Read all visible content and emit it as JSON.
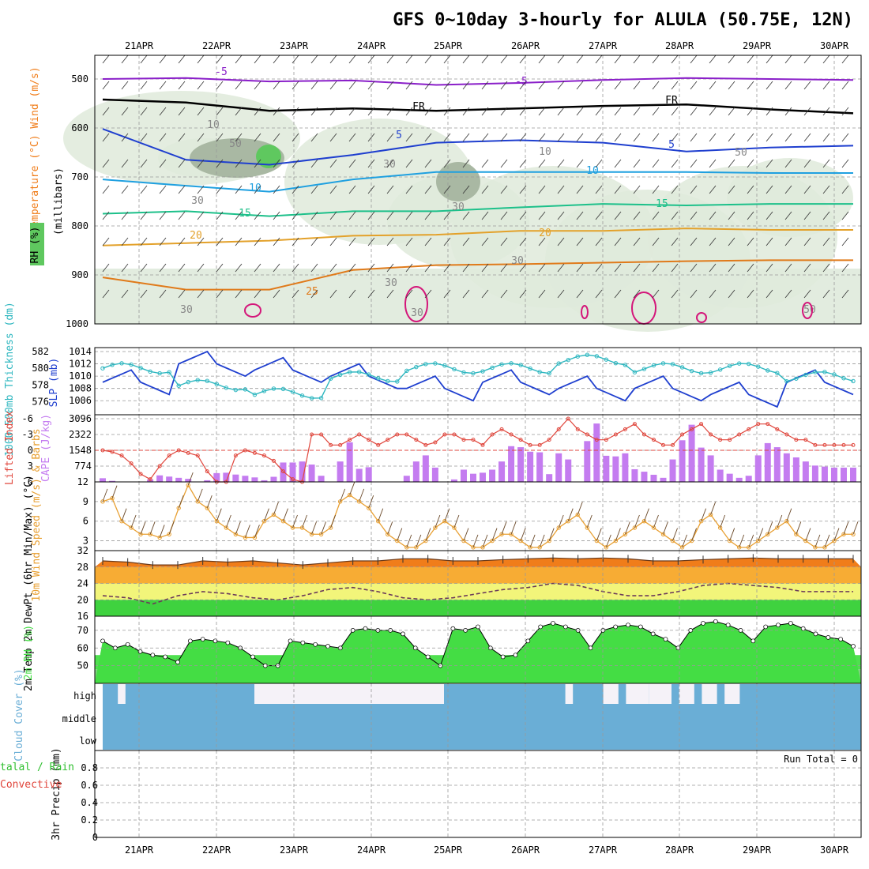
{
  "header": {
    "title": "GFS 0~10day 3-hourly for ALULA (50.75E, 12N)"
  },
  "colors": {
    "blue_line": "#1f3fcf",
    "cyan_line": "#2fb7c0",
    "cape": "#c47cf0",
    "lifted": "#e0463c",
    "wind_speed": "#e8a033",
    "rh_green": "#44dd44",
    "cloud_blue": "#6aaed6",
    "temp_orange": "#f07d1a"
  },
  "chart_data": [
    {
      "type": "line",
      "panel": "pressure-cross-section",
      "title": "",
      "ylabel": "Temperature (°C) Wind (m/s)",
      "ylabel2": "RH (%)",
      "ylabel3": "(millibars)",
      "yticks": [
        "500",
        "600",
        "700",
        "800",
        "900",
        "1000"
      ],
      "ylim": [
        450,
        1000
      ],
      "x": [
        "21APR",
        "22APR",
        "23APR",
        "24APR",
        "25APR",
        "26APR",
        "27APR",
        "28APR",
        "29APR",
        "30APR"
      ],
      "isotherm_labels": [
        "-5",
        "-5",
        "FR",
        "FR",
        "5",
        "5",
        "10",
        "10",
        "15",
        "15",
        "20",
        "20",
        "25"
      ],
      "rh_labels": [
        "30",
        "30",
        "30",
        "30",
        "30",
        "50",
        "50",
        "50",
        "10",
        "10",
        "30",
        "30"
      ],
      "series": [
        {
          "name": "-5",
          "values": [
            500,
            498,
            505,
            503,
            512,
            508,
            502,
            498,
            500,
            502
          ]
        },
        {
          "name": "FR",
          "values": [
            542,
            548,
            565,
            560,
            565,
            560,
            555,
            552,
            562,
            570
          ]
        },
        {
          "name": "5",
          "values": [
            602,
            665,
            675,
            655,
            630,
            625,
            630,
            648,
            640,
            636
          ]
        },
        {
          "name": "10",
          "values": [
            705,
            718,
            730,
            705,
            690,
            690,
            690,
            690,
            692,
            692
          ]
        },
        {
          "name": "15",
          "values": [
            775,
            770,
            780,
            770,
            770,
            762,
            755,
            758,
            755,
            755
          ]
        },
        {
          "name": "20",
          "values": [
            840,
            835,
            830,
            820,
            818,
            810,
            810,
            805,
            808,
            808
          ]
        },
        {
          "name": "25",
          "values": [
            905,
            930,
            930,
            890,
            880,
            878,
            875,
            872,
            870,
            870
          ]
        }
      ]
    },
    {
      "type": "line",
      "panel": "slp-thickness",
      "ylabel_left": "1000-500mb Thickness (dm)",
      "ylabel_right": "SLP (mb)",
      "yticks_left": [
        "576",
        "578",
        "580",
        "582"
      ],
      "yticks_right": [
        "1006",
        "1008",
        "1010",
        "1012",
        "1014"
      ],
      "ylim_left": [
        575.4,
        582
      ],
      "ylim_right": [
        1005,
        1014
      ],
      "series": [
        {
          "name": "SLP (mb)",
          "values": [
            1009,
            1012,
            1011,
            1010,
            1008,
            1009,
            1008,
            1008,
            1007,
            1009
          ]
        },
        {
          "name": "Thickness (dm)",
          "values": [
            580,
            578,
            577,
            579,
            580,
            580,
            581,
            580,
            580,
            579
          ]
        }
      ]
    },
    {
      "type": "bar",
      "panel": "cape-lifted-index",
      "ylabel_left": "Lifted Index",
      "ylabel_right": "CAPE (J/kg)",
      "yticks_left": [
        "-6",
        "-3",
        "0",
        "3",
        "6"
      ],
      "yticks_right": [
        "774",
        "1548",
        "2322",
        "3096"
      ],
      "ylim_cape": [
        0,
        3096
      ],
      "cape_values": [
        180,
        50,
        0,
        0,
        0,
        120,
        320,
        260,
        200,
        150,
        0,
        80,
        430,
        450,
        360,
        300,
        220,
        80,
        250,
        950,
        950,
        1000,
        850,
        300,
        0,
        1000,
        1940,
        640,
        720,
        0,
        0,
        0,
        300,
        1000,
        1300,
        700,
        0,
        120,
        600,
        400,
        450,
        600,
        1000,
        1750,
        1700,
        1480,
        1450,
        380,
        1400,
        1100,
        0,
        2000,
        2860,
        1280,
        1250,
        1400,
        620,
        500,
        350,
        200,
        1100,
        2040,
        2800,
        1680,
        1300,
        600,
        400,
        200,
        300,
        1300,
        1900,
        1700,
        1400,
        1200,
        1000,
        800,
        750,
        700,
        700,
        700
      ],
      "lifted_values": [
        0,
        0.3,
        1,
        2.5,
        4.5,
        5.5,
        3,
        1,
        0,
        0.5,
        1,
        4,
        6,
        6,
        1,
        0,
        0.5,
        1,
        2,
        4,
        5.5,
        6,
        -3,
        -3,
        -1,
        -1,
        -2,
        -3,
        -2,
        -1,
        -2,
        -3,
        -3,
        -2,
        -1,
        -1.5,
        -3,
        -3,
        -2,
        -2,
        -1,
        -3,
        -4,
        -3,
        -2,
        -1,
        -1,
        -2,
        -4,
        -6,
        -4,
        -3,
        -2,
        -2,
        -3,
        -4,
        -5,
        -3,
        -2,
        -1,
        -1,
        -3,
        -4,
        -5,
        -3,
        -2,
        -2,
        -3,
        -4,
        -5,
        -5,
        -4,
        -3,
        -2,
        -2,
        -1,
        -1,
        -1,
        -1,
        -1
      ]
    },
    {
      "type": "line",
      "panel": "wind-10m",
      "ylabel": "10m Wind Speed (m/s) & Barbs",
      "yticks": [
        "3",
        "6",
        "9",
        "12"
      ],
      "ylim": [
        1.5,
        12
      ],
      "values": [
        9,
        9.5,
        6,
        5,
        4,
        4,
        3.5,
        4,
        8,
        11.5,
        9,
        8,
        6,
        5,
        4,
        3.5,
        3.5,
        6,
        7,
        6,
        5,
        5,
        4,
        4,
        5,
        9,
        10,
        9,
        8,
        6,
        4,
        3,
        2,
        2,
        3,
        5,
        6,
        5,
        3,
        2,
        2,
        3,
        4,
        4,
        3,
        2,
        2,
        3,
        5,
        6,
        7,
        5,
        3,
        2,
        3,
        4,
        5,
        6,
        5,
        4,
        3,
        2,
        3,
        6,
        7,
        5,
        3,
        2,
        2,
        3,
        4,
        5,
        6,
        4,
        3,
        2,
        2,
        3,
        4,
        4
      ]
    },
    {
      "type": "area",
      "panel": "temp-dewpoint",
      "ylabel": "2m Temp 2m DewPt (6hr Min/Max) (°C)",
      "yticks": [
        "16",
        "20",
        "24",
        "28",
        "32"
      ],
      "ylim": [
        16,
        32
      ],
      "temp_values": [
        29.5,
        29.2,
        28.5,
        28.5,
        29.5,
        29.2,
        29.5,
        29,
        28.5,
        29,
        29.5,
        29.5,
        30,
        30,
        29.5,
        29.5,
        29.8,
        30,
        30.2,
        30,
        30.2,
        30,
        29.5,
        29.5,
        29.8,
        30,
        30.2,
        30,
        30,
        30,
        30
      ],
      "dewpt_values": [
        21,
        20.5,
        19,
        21,
        22,
        21.5,
        20.5,
        20,
        21,
        22.5,
        23,
        22,
        20.5,
        20,
        20.5,
        21.5,
        22.5,
        23,
        24,
        23.5,
        22,
        21,
        21,
        22,
        23.5,
        24,
        23.5,
        23,
        22,
        22,
        22
      ]
    },
    {
      "type": "area",
      "panel": "rh-2m",
      "ylabel": "2m RH (%)",
      "yticks": [
        "50",
        "60",
        "70"
      ],
      "ylim": [
        40,
        78
      ],
      "values": [
        64,
        60,
        62,
        58,
        56,
        55,
        52,
        64,
        65,
        64,
        63,
        60,
        55,
        50,
        50,
        64,
        63,
        62,
        61,
        60,
        70,
        71,
        70,
        70,
        68,
        60,
        55,
        50,
        71,
        70,
        72,
        60,
        55,
        56,
        64,
        72,
        74,
        72,
        70,
        60,
        70,
        72,
        73,
        72,
        68,
        65,
        60,
        70,
        74,
        75,
        73,
        70,
        64,
        72,
        73,
        74,
        71,
        68,
        66,
        65,
        61
      ]
    },
    {
      "type": "heatmap",
      "panel": "cloud-cover",
      "ylabel": "Cloud Cover (%)",
      "yticks": [
        "high",
        "middle",
        "low"
      ],
      "high_cloud_segments": [
        [
          0.02,
          0.03
        ],
        [
          0.2,
          0.45
        ],
        [
          0.61,
          0.62
        ],
        [
          0.66,
          0.68
        ],
        [
          0.69,
          0.72
        ],
        [
          0.72,
          0.75
        ],
        [
          0.76,
          0.78
        ],
        [
          0.79,
          0.81
        ],
        [
          0.82,
          0.84
        ]
      ]
    },
    {
      "type": "bar",
      "panel": "precipitation",
      "ylabel_left": "Total / Rain Convective",
      "ylabel": "3hr Precip (mm)",
      "yticks": [
        "0",
        "0.2",
        "0.4",
        "0.6",
        "0.8"
      ],
      "ylim": [
        0,
        1
      ],
      "run_total_label": "Run Total = 0",
      "values": []
    }
  ],
  "x_axis": {
    "top_labels": [
      "21APR",
      "22APR",
      "23APR",
      "24APR",
      "25APR",
      "26APR",
      "27APR",
      "28APR",
      "29APR",
      "30APR"
    ],
    "bottom_labels": [
      "21APR",
      "22APR",
      "23APR",
      "24APR",
      "25APR",
      "26APR",
      "27APR",
      "28APR",
      "29APR",
      "30APR"
    ]
  }
}
